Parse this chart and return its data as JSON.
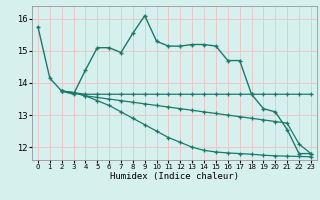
{
  "title": "",
  "xlabel": "Humidex (Indice chaleur)",
  "bg_color": "#d6f0ee",
  "grid_color": "#e8c8c8",
  "line_color": "#1a7a6a",
  "xlim": [
    -0.5,
    23.5
  ],
  "ylim": [
    11.6,
    16.4
  ],
  "yticks": [
    12,
    13,
    14,
    15,
    16
  ],
  "xticks": [
    0,
    1,
    2,
    3,
    4,
    5,
    6,
    7,
    8,
    9,
    10,
    11,
    12,
    13,
    14,
    15,
    16,
    17,
    18,
    19,
    20,
    21,
    22,
    23
  ],
  "s1_x": [
    0,
    1,
    2,
    3,
    4,
    5,
    6,
    7,
    8,
    9,
    10,
    11,
    12,
    13,
    14,
    15,
    16,
    17,
    18,
    19,
    20,
    21,
    22,
    23
  ],
  "s1_y": [
    15.75,
    14.15,
    13.75,
    13.65,
    14.4,
    15.1,
    15.1,
    14.95,
    15.55,
    16.1,
    15.3,
    15.15,
    15.15,
    15.2,
    15.2,
    15.15,
    14.7,
    14.7,
    13.65,
    13.2,
    13.1,
    12.55,
    11.8,
    11.8
  ],
  "s2_x": [
    2,
    3,
    4,
    5,
    6,
    7,
    8,
    9,
    10,
    11,
    12,
    13,
    14,
    15,
    16,
    17,
    18,
    19,
    20,
    21,
    22,
    23
  ],
  "s2_y": [
    13.75,
    13.7,
    13.65,
    13.65,
    13.65,
    13.65,
    13.65,
    13.65,
    13.65,
    13.65,
    13.65,
    13.65,
    13.65,
    13.65,
    13.65,
    13.65,
    13.65,
    13.65,
    13.65,
    13.65,
    13.65,
    13.65
  ],
  "s3_x": [
    2,
    3,
    4,
    5,
    6,
    7,
    8,
    9,
    10,
    11,
    12,
    13,
    14,
    15,
    16,
    17,
    18,
    19,
    20,
    21,
    22,
    23
  ],
  "s3_y": [
    13.75,
    13.7,
    13.6,
    13.55,
    13.5,
    13.45,
    13.4,
    13.35,
    13.3,
    13.25,
    13.2,
    13.15,
    13.1,
    13.05,
    13.0,
    12.95,
    12.9,
    12.85,
    12.8,
    12.75,
    12.1,
    11.8
  ],
  "s4_x": [
    2,
    3,
    4,
    5,
    6,
    7,
    8,
    9,
    10,
    11,
    12,
    13,
    14,
    15,
    16,
    17,
    18,
    19,
    20,
    21,
    22,
    23
  ],
  "s4_y": [
    13.75,
    13.7,
    13.6,
    13.45,
    13.3,
    13.1,
    12.9,
    12.7,
    12.5,
    12.3,
    12.15,
    12.0,
    11.9,
    11.85,
    11.82,
    11.8,
    11.78,
    11.75,
    11.73,
    11.72,
    11.71,
    11.7
  ]
}
